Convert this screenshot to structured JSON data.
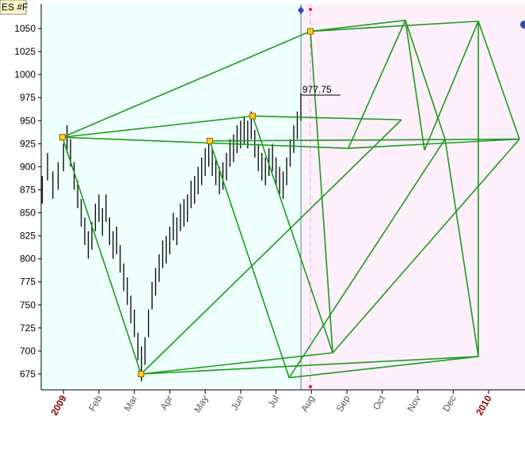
{
  "chart_data": {
    "type": "price_bars",
    "title": "ES #F",
    "xlim": [
      -0.63,
      12.96
    ],
    "xticks": [
      {
        "value": 0,
        "label": "2009"
      },
      {
        "value": 1,
        "label": "Feb"
      },
      {
        "value": 2,
        "label": "Mar"
      },
      {
        "value": 3,
        "label": "Apr"
      },
      {
        "value": 4,
        "label": "May"
      },
      {
        "value": 5,
        "label": "Jun"
      },
      {
        "value": 6,
        "label": "Jul"
      },
      {
        "value": 7,
        "label": "Aug"
      },
      {
        "value": 8,
        "label": "Sep"
      },
      {
        "value": 9,
        "label": "Oct"
      },
      {
        "value": 10,
        "label": "Nov"
      },
      {
        "value": 11,
        "label": "Dec"
      },
      {
        "value": 12,
        "label": "2010"
      }
    ],
    "ylim": [
      657.8,
      1076.7
    ],
    "yticks": [
      675,
      700,
      725,
      750,
      775,
      800,
      825,
      850,
      875,
      900,
      925,
      950,
      975,
      1000,
      1025,
      1050
    ],
    "bar_color": "#000000",
    "x": [
      -0.6,
      -0.45,
      -0.3,
      -0.15,
      0.0,
      0.1,
      0.2,
      0.3,
      0.4,
      0.5,
      0.6,
      0.7,
      0.8,
      0.9,
      1.0,
      1.1,
      1.2,
      1.3,
      1.4,
      1.5,
      1.6,
      1.7,
      1.8,
      1.9,
      2.0,
      2.1,
      2.2,
      2.3,
      2.4,
      2.5,
      2.6,
      2.7,
      2.8,
      2.9,
      3.0,
      3.1,
      3.2,
      3.3,
      3.4,
      3.5,
      3.6,
      3.7,
      3.8,
      3.9,
      4.0,
      4.1,
      4.2,
      4.3,
      4.4,
      4.5,
      4.6,
      4.7,
      4.8,
      4.9,
      5.0,
      5.1,
      5.2,
      5.3,
      5.4,
      5.5,
      5.6,
      5.7,
      5.8,
      5.9,
      6.0,
      6.1,
      6.2,
      6.3,
      6.4,
      6.5,
      6.6,
      6.7
    ],
    "high": [
      890,
      915,
      895,
      905,
      925,
      945,
      930,
      905,
      885,
      865,
      845,
      830,
      840,
      860,
      870,
      855,
      870,
      845,
      830,
      835,
      815,
      795,
      780,
      760,
      745,
      720,
      705,
      715,
      745,
      775,
      790,
      805,
      820,
      825,
      835,
      850,
      845,
      860,
      865,
      870,
      885,
      890,
      900,
      910,
      920,
      930,
      920,
      910,
      900,
      905,
      915,
      930,
      935,
      945,
      950,
      955,
      950,
      960,
      940,
      925,
      915,
      910,
      920,
      925,
      910,
      900,
      895,
      910,
      930,
      945,
      960,
      980
    ],
    "low": [
      860,
      885,
      865,
      875,
      895,
      915,
      900,
      875,
      855,
      835,
      815,
      800,
      810,
      830,
      840,
      825,
      840,
      815,
      800,
      805,
      785,
      765,
      750,
      730,
      715,
      690,
      667,
      685,
      715,
      745,
      760,
      775,
      790,
      795,
      805,
      820,
      815,
      830,
      835,
      840,
      855,
      860,
      870,
      880,
      890,
      900,
      890,
      880,
      870,
      875,
      885,
      900,
      905,
      915,
      920,
      925,
      920,
      930,
      910,
      895,
      885,
      880,
      890,
      895,
      880,
      870,
      865,
      880,
      900,
      915,
      930,
      950
    ],
    "last_price": 977.75,
    "pivots": {
      "color": "#f5d800",
      "x": [
        -0.03,
        2.19,
        4.13,
        5.34,
        6.97
      ],
      "y": [
        932,
        675,
        928,
        955,
        1047
      ]
    },
    "overlay_color": "#1f9a1f",
    "overlay": [
      {
        "x": [
          -0.03,
          6.97
        ],
        "y": [
          932,
          1047
        ]
      },
      {
        "x": [
          -0.03,
          2.19
        ],
        "y": [
          932,
          675
        ]
      },
      {
        "x": [
          -0.03,
          5.34
        ],
        "y": [
          932,
          955
        ]
      },
      {
        "x": [
          -0.03,
          8.04
        ],
        "y": [
          932,
          920
        ]
      },
      {
        "x": [
          2.19,
          9.54
        ],
        "y": [
          675,
          951
        ]
      },
      {
        "x": [
          2.19,
          11.71
        ],
        "y": [
          675,
          694
        ]
      },
      {
        "x": [
          2.19,
          7.6
        ],
        "y": [
          675,
          698
        ]
      },
      {
        "x": [
          4.13,
          6.37
        ],
        "y": [
          928,
          671
        ]
      },
      {
        "x": [
          4.13,
          12.87
        ],
        "y": [
          928,
          930
        ]
      },
      {
        "x": [
          5.34,
          9.54
        ],
        "y": [
          955,
          951
        ]
      },
      {
        "x": [
          5.34,
          7.6
        ],
        "y": [
          955,
          698
        ]
      },
      {
        "x": [
          6.97,
          9.65
        ],
        "y": [
          1047,
          1059
        ]
      },
      {
        "x": [
          6.97,
          11.71
        ],
        "y": [
          1047,
          1058
        ]
      },
      {
        "x": [
          6.97,
          7.6
        ],
        "y": [
          1047,
          698
        ]
      },
      {
        "x": [
          8.04,
          9.65
        ],
        "y": [
          920,
          1059
        ]
      },
      {
        "x": [
          8.04,
          12.87
        ],
        "y": [
          920,
          930
        ]
      },
      {
        "x": [
          9.65,
          10.77
        ],
        "y": [
          1059,
          930
        ]
      },
      {
        "x": [
          11.71,
          12.87
        ],
        "y": [
          1058,
          930
        ]
      },
      {
        "x": [
          11.71,
          10.19
        ],
        "y": [
          1058,
          918
        ]
      },
      {
        "x": [
          11.71,
          11.71
        ],
        "y": [
          1058,
          694
        ]
      },
      {
        "x": [
          6.37,
          11.71
        ],
        "y": [
          671,
          694
        ]
      },
      {
        "x": [
          6.37,
          10.77
        ],
        "y": [
          671,
          930
        ]
      },
      {
        "x": [
          7.6,
          12.87
        ],
        "y": [
          698,
          930
        ]
      },
      {
        "x": [
          9.65,
          10.19
        ],
        "y": [
          1059,
          918
        ]
      },
      {
        "x": [
          10.77,
          11.71
        ],
        "y": [
          930,
          694
        ]
      }
    ]
  }
}
